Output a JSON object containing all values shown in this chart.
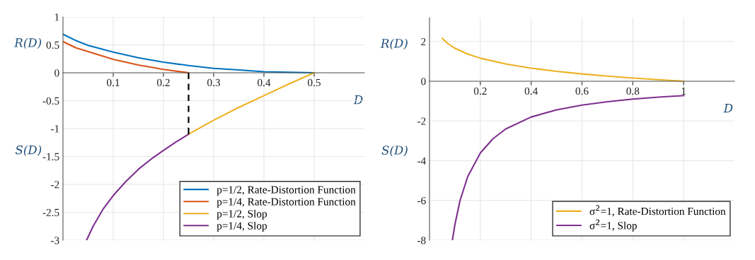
{
  "chart_data": [
    {
      "type": "line",
      "xlabel": "D",
      "ylabel": "R(D)",
      "annotations": [
        "S(D)"
      ],
      "xlim": [
        0,
        0.6
      ],
      "ylim": [
        -3,
        1
      ],
      "xticks": [
        0.1,
        0.2,
        0.3,
        0.4,
        0.5
      ],
      "yticks": [
        -3,
        -2.5,
        -2,
        -1.5,
        -1,
        -0.5,
        0,
        0.5,
        1
      ],
      "grid": true,
      "legend": "bottom right",
      "series": [
        {
          "name": "p=1/2, Rate-Distortion Function",
          "color": "#0072bd",
          "x": [
            0,
            0.025,
            0.05,
            0.1,
            0.15,
            0.2,
            0.25,
            0.3,
            0.35,
            0.4,
            0.45,
            0.5
          ],
          "values": [
            0.69,
            0.58,
            0.49,
            0.37,
            0.27,
            0.19,
            0.13,
            0.08,
            0.05,
            0.02,
            0.01,
            0
          ]
        },
        {
          "name": "p=1/4, Rate-Distortion Function",
          "color": "#d95319",
          "x": [
            0,
            0.025,
            0.05,
            0.1,
            0.15,
            0.2,
            0.25
          ],
          "values": [
            0.56,
            0.45,
            0.38,
            0.24,
            0.14,
            0.06,
            0
          ]
        },
        {
          "name": "p=1/2, Slop",
          "color": "#edb120",
          "x": [
            0.25,
            0.3,
            0.35,
            0.4,
            0.45,
            0.5
          ],
          "values": [
            -1.1,
            -0.85,
            -0.62,
            -0.41,
            -0.2,
            0
          ]
        },
        {
          "name": "p=1/4, Slop",
          "color": "#7e2f8e",
          "x": [
            0.047,
            0.06,
            0.08,
            0.1,
            0.125,
            0.15,
            0.175,
            0.2,
            0.225,
            0.25
          ],
          "values": [
            -3.0,
            -2.75,
            -2.44,
            -2.2,
            -1.95,
            -1.73,
            -1.55,
            -1.39,
            -1.24,
            -1.1
          ]
        },
        {
          "color": "#000000",
          "line_style": "dashed",
          "x": [
            0.25,
            0.25
          ],
          "values": [
            0,
            -1.1
          ]
        }
      ]
    },
    {
      "type": "line",
      "xlabel": "D",
      "ylabel": "R(D)",
      "annotations": [
        "S(D)"
      ],
      "xlim": [
        0,
        1.2
      ],
      "ylim": [
        -8,
        3.2
      ],
      "xticks": [
        0.2,
        0.4,
        0.6,
        0.8,
        1
      ],
      "yticks": [
        -8,
        -6,
        -4,
        -2,
        0,
        2
      ],
      "grid": true,
      "legend": "bottom right",
      "series": [
        {
          "name": "σ$^{2}$=1, Rate-Distortion Function",
          "color": "#edb120",
          "x": [
            0.05,
            0.07,
            0.1,
            0.15,
            0.2,
            0.3,
            0.4,
            0.5,
            0.6,
            0.7,
            0.8,
            0.9,
            1
          ],
          "values": [
            2.16,
            1.92,
            1.66,
            1.37,
            1.16,
            0.87,
            0.66,
            0.5,
            0.37,
            0.26,
            0.16,
            0.08,
            0
          ]
        },
        {
          "name": "σ$^{2}$=1, Slop",
          "color": "#7e2f8e",
          "x": [
            0.09,
            0.1,
            0.12,
            0.15,
            0.2,
            0.25,
            0.3,
            0.4,
            0.5,
            0.6,
            0.7,
            0.8,
            0.9,
            1
          ],
          "values": [
            -8.0,
            -7.21,
            -6.01,
            -4.81,
            -3.61,
            -2.89,
            -2.4,
            -1.8,
            -1.44,
            -1.2,
            -1.03,
            -0.9,
            -0.8,
            -0.72
          ]
        }
      ]
    }
  ]
}
